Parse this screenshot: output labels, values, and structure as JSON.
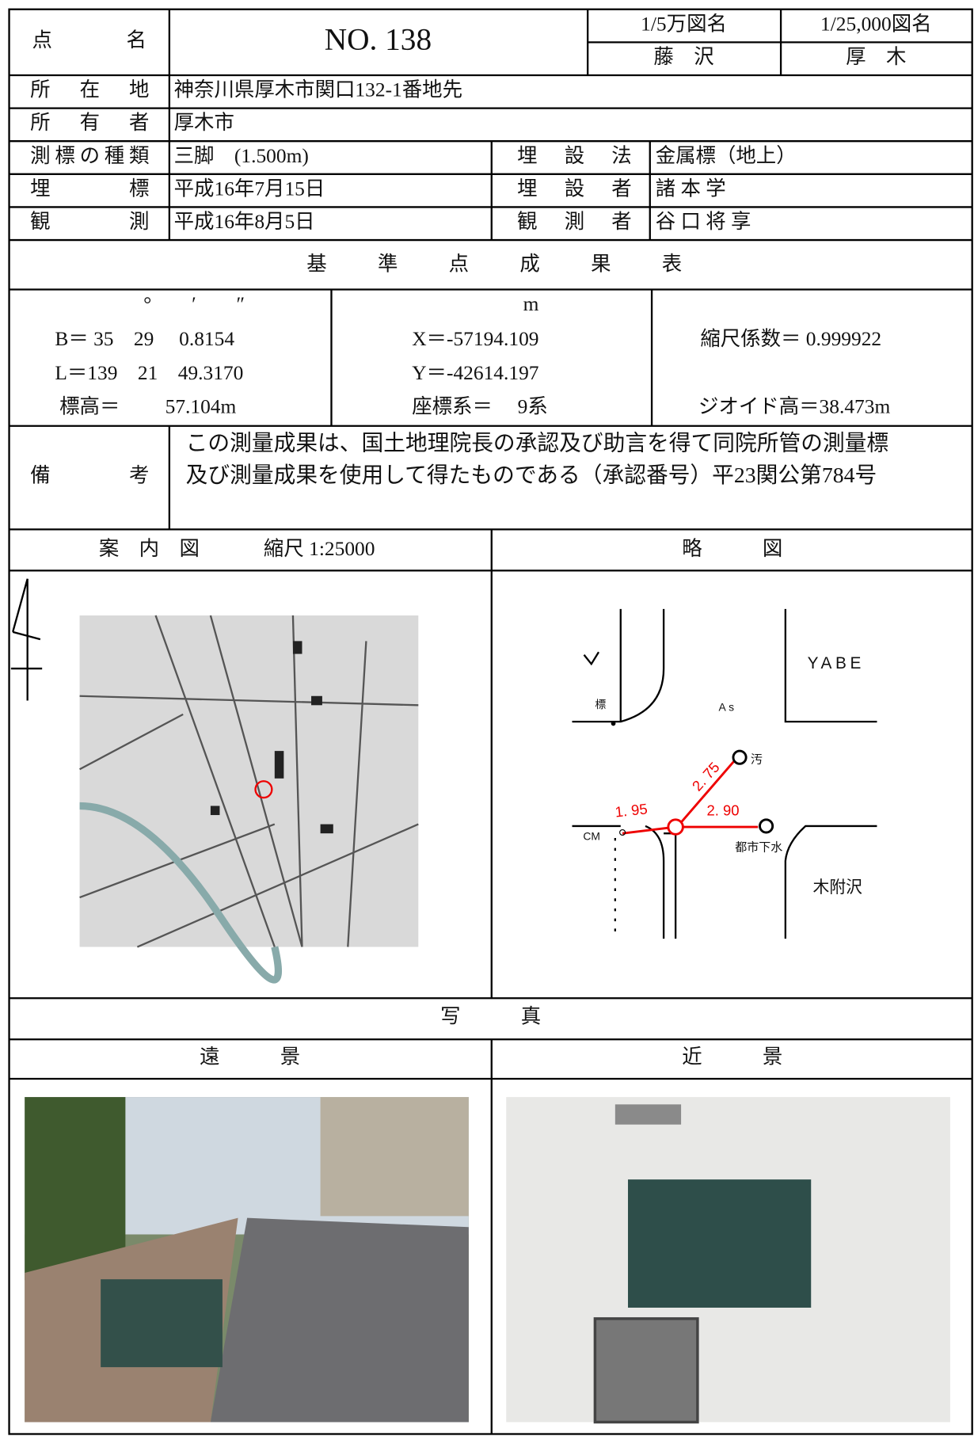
{
  "header": {
    "point_label": "点名",
    "point_name": "NO. 138",
    "map50k_label": "1/5万図名",
    "map50k": "藤　沢",
    "map25k_label": "1/25,000図名",
    "map25k": "厚　木"
  },
  "info": {
    "location_label": "所在地",
    "location": "神奈川県厚木市関口132-1番地先",
    "owner_label": "所有者",
    "owner": "厚木市",
    "marker_type_label": "測標の種類",
    "marker_type": "三脚　(1.500m)",
    "burial_method_label": "埋設法",
    "burial_method": "金属標（地上）",
    "burial_label": "埋標",
    "burial_date": "平成16年7月15日",
    "burier_label": "埋設者",
    "burier": "諸 本 学",
    "observation_label": "観測",
    "observation_date": "平成16年8月5日",
    "observer_label": "観測者",
    "observer": "谷 口 将 享"
  },
  "results": {
    "title": "基準点成果表",
    "dms_units": "°　　′　　″",
    "latitude": "B＝ 35　29　 0.8154",
    "longitude": "L＝139　21　49.3170",
    "height": "標高＝　　 57.104m",
    "unit": "m",
    "x": "X＝-57194.109",
    "y": "Y＝-42614.197",
    "coord_system": "座標系＝　 9系",
    "scale_factor": "縮尺係数＝ 0.999922",
    "geoid_height": "ジオイド高＝38.473m"
  },
  "remarks": {
    "label": "備考",
    "lines": [
      "この測量成果は、国土地理院長の承認及び助言を得て同院所管の測量標",
      "及び測量成果を使用して得たものである（承認番号）平23関公第784号"
    ]
  },
  "guide_map": {
    "label": "案　内　図",
    "scale": "縮尺 1:25000"
  },
  "sketch": {
    "label": "略　　　図",
    "labels": [
      "YABE",
      "As",
      "汚",
      "都市下水",
      "木附沢",
      "標",
      "CM"
    ],
    "distances": [
      "1. 95",
      "2. 75",
      "2. 90"
    ]
  },
  "photos": {
    "label": "写　　　真",
    "far_label": "遠　　　景",
    "near_label": "近　　　景"
  }
}
